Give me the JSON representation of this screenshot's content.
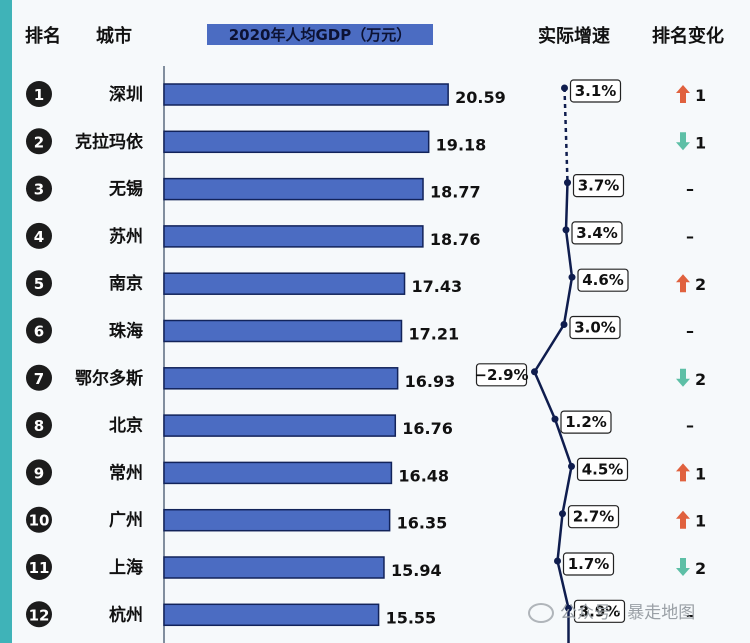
{
  "headers": {
    "rank": "排名",
    "city": "城市",
    "gdp": "2020年人均GDP（万元）",
    "growth": "实际增速",
    "change": "排名变化"
  },
  "colors": {
    "bar": "#4b6cc2",
    "bar_outline": "#12235a",
    "rank_circle": "#1c1c1c",
    "growth_line": "#0f1d4e",
    "up_arrow": "#e0613e",
    "down_arrow": "#5dbfa6",
    "page_border": "#3fb3b8"
  },
  "chart_data": {
    "type": "bar",
    "orientation": "horizontal",
    "categories": [
      "深圳",
      "克拉玛依",
      "无锡",
      "苏州",
      "南京",
      "珠海",
      "鄂尔多斯",
      "北京",
      "常州",
      "广州",
      "上海",
      "杭州"
    ],
    "ranks": [
      "1",
      "2",
      "3",
      "4",
      "5",
      "6",
      "7",
      "8",
      "9",
      "10",
      "11",
      "12"
    ],
    "series": [
      {
        "name": "2020年人均GDP（万元）",
        "values": [
          20.59,
          19.18,
          18.77,
          18.76,
          17.43,
          17.21,
          16.93,
          16.76,
          16.48,
          16.35,
          15.94,
          15.55
        ]
      }
    ],
    "value_labels": [
      "20.59",
      "19.18",
      "18.77",
      "18.76",
      "17.43",
      "17.21",
      "16.93",
      "16.76",
      "16.48",
      "16.35",
      "15.94",
      "15.55"
    ],
    "growth": {
      "values": [
        3.1,
        null,
        3.7,
        3.4,
        4.6,
        3.0,
        -2.9,
        1.2,
        4.5,
        2.7,
        1.7,
        3.9
      ],
      "labels": [
        "3.1%",
        "",
        "3.7%",
        "3.4%",
        "4.6%",
        "3.0%",
        "−2.9%",
        "1.2%",
        "4.5%",
        "2.7%",
        "1.7%",
        "3.9%"
      ],
      "range": [
        -4,
        5
      ]
    },
    "rank_change": [
      {
        "direction": "up",
        "value": "1"
      },
      {
        "direction": "down",
        "value": "1"
      },
      {
        "direction": "none",
        "value": "–"
      },
      {
        "direction": "none",
        "value": "–"
      },
      {
        "direction": "up",
        "value": "2"
      },
      {
        "direction": "none",
        "value": "–"
      },
      {
        "direction": "down",
        "value": "2"
      },
      {
        "direction": "none",
        "value": "–"
      },
      {
        "direction": "up",
        "value": "1"
      },
      {
        "direction": "up",
        "value": "1"
      },
      {
        "direction": "down",
        "value": "2"
      },
      {
        "direction": "none",
        "value": "–"
      }
    ],
    "xlim": [
      0,
      21.5
    ]
  },
  "watermark": "公众号 · 暴走地图"
}
